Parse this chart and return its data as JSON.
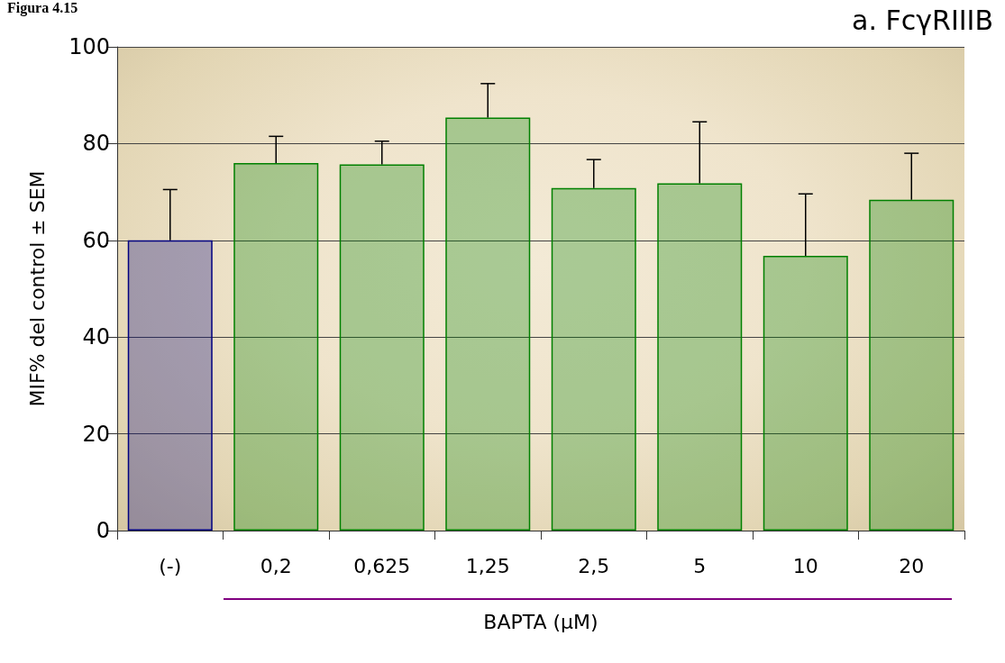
{
  "chart_data": {
    "type": "bar",
    "title": "a. FcγRIIIB",
    "annotations": [
      "Figura 4.15"
    ],
    "xlabel": "BAPTA (µM)",
    "ylabel": "MIF% del control ± SEM",
    "categories": [
      "(-)",
      "0,2",
      "0,625",
      "1,25",
      "2,5",
      "5",
      "10",
      "20"
    ],
    "values": [
      60,
      76,
      75.7,
      85.4,
      70.8,
      71.8,
      56.8,
      68.4
    ],
    "colors": [
      "#000080",
      "#008000",
      "#008000",
      "#008000",
      "#008000",
      "#008000",
      "#008000",
      "#008000"
    ],
    "errors": [
      [
        60,
        70.5
      ],
      [
        76,
        81.5
      ],
      [
        75.7,
        80.5
      ],
      [
        85.4,
        92.4
      ],
      [
        70.8,
        76.7
      ],
      [
        71.8,
        84.5
      ],
      [
        56.8,
        69.6
      ],
      [
        68.4,
        78
      ]
    ],
    "ylim": [
      0,
      100
    ],
    "yticks": [
      0,
      20,
      40,
      60,
      80,
      100
    ],
    "grid": "y"
  }
}
